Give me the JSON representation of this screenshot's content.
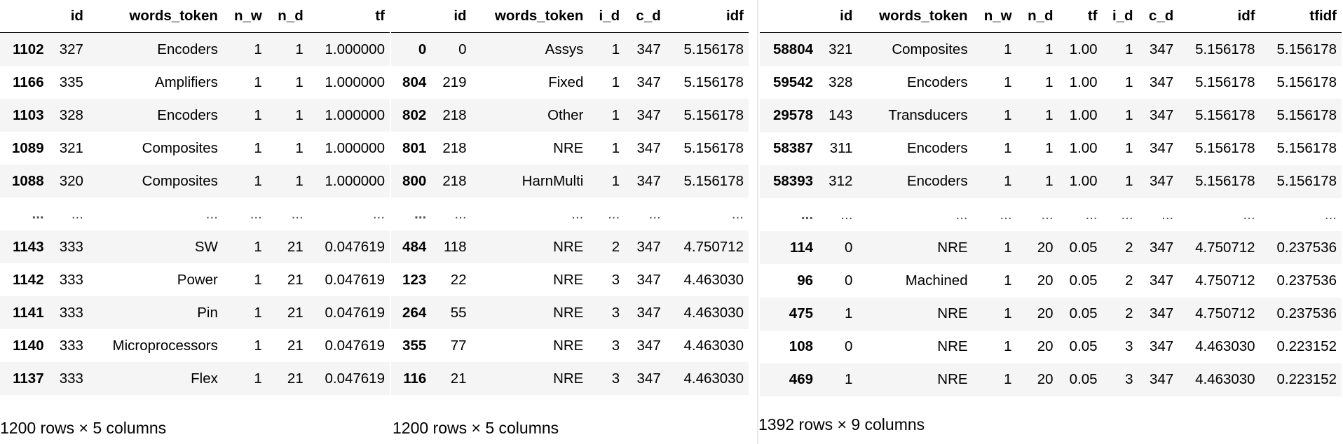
{
  "tables": [
    {
      "columns": [
        "",
        "id",
        "words_token",
        "n_w",
        "n_d",
        "tf"
      ],
      "rows": [
        [
          "1102",
          "327",
          "Encoders",
          "1",
          "1",
          "1.000000"
        ],
        [
          "1166",
          "335",
          "Amplifiers",
          "1",
          "1",
          "1.000000"
        ],
        [
          "1103",
          "328",
          "Encoders",
          "1",
          "1",
          "1.000000"
        ],
        [
          "1089",
          "321",
          "Composites",
          "1",
          "1",
          "1.000000"
        ],
        [
          "1088",
          "320",
          "Composites",
          "1",
          "1",
          "1.000000"
        ],
        [
          "...",
          "...",
          "...",
          "...",
          "...",
          "..."
        ],
        [
          "1143",
          "333",
          "SW",
          "1",
          "21",
          "0.047619"
        ],
        [
          "1142",
          "333",
          "Power",
          "1",
          "21",
          "0.047619"
        ],
        [
          "1141",
          "333",
          "Pin",
          "1",
          "21",
          "0.047619"
        ],
        [
          "1140",
          "333",
          "Microprocessors",
          "1",
          "21",
          "0.047619"
        ],
        [
          "1137",
          "333",
          "Flex",
          "1",
          "21",
          "0.047619"
        ]
      ],
      "footer": "1200 rows × 5 columns"
    },
    {
      "columns": [
        "",
        "id",
        "words_token",
        "i_d",
        "c_d",
        "idf"
      ],
      "rows": [
        [
          "0",
          "0",
          "Assys",
          "1",
          "347",
          "5.156178"
        ],
        [
          "804",
          "219",
          "Fixed",
          "1",
          "347",
          "5.156178"
        ],
        [
          "802",
          "218",
          "Other",
          "1",
          "347",
          "5.156178"
        ],
        [
          "801",
          "218",
          "NRE",
          "1",
          "347",
          "5.156178"
        ],
        [
          "800",
          "218",
          "HarnMulti",
          "1",
          "347",
          "5.156178"
        ],
        [
          "...",
          "...",
          "...",
          "...",
          "...",
          "..."
        ],
        [
          "484",
          "118",
          "NRE",
          "2",
          "347",
          "4.750712"
        ],
        [
          "123",
          "22",
          "NRE",
          "3",
          "347",
          "4.463030"
        ],
        [
          "264",
          "55",
          "NRE",
          "3",
          "347",
          "4.463030"
        ],
        [
          "355",
          "77",
          "NRE",
          "3",
          "347",
          "4.463030"
        ],
        [
          "116",
          "21",
          "NRE",
          "3",
          "347",
          "4.463030"
        ]
      ],
      "footer": "1200 rows × 5 columns"
    },
    {
      "columns": [
        "",
        "id",
        "words_token",
        "n_w",
        "n_d",
        "tf",
        "i_d",
        "c_d",
        "idf",
        "tfidf"
      ],
      "rows": [
        [
          "58804",
          "321",
          "Composites",
          "1",
          "1",
          "1.00",
          "1",
          "347",
          "5.156178",
          "5.156178"
        ],
        [
          "59542",
          "328",
          "Encoders",
          "1",
          "1",
          "1.00",
          "1",
          "347",
          "5.156178",
          "5.156178"
        ],
        [
          "29578",
          "143",
          "Transducers",
          "1",
          "1",
          "1.00",
          "1",
          "347",
          "5.156178",
          "5.156178"
        ],
        [
          "58387",
          "311",
          "Encoders",
          "1",
          "1",
          "1.00",
          "1",
          "347",
          "5.156178",
          "5.156178"
        ],
        [
          "58393",
          "312",
          "Encoders",
          "1",
          "1",
          "1.00",
          "1",
          "347",
          "5.156178",
          "5.156178"
        ],
        [
          "...",
          "...",
          "...",
          "...",
          "...",
          "...",
          "...",
          "...",
          "...",
          "..."
        ],
        [
          "114",
          "0",
          "NRE",
          "1",
          "20",
          "0.05",
          "2",
          "347",
          "4.750712",
          "0.237536"
        ],
        [
          "96",
          "0",
          "Machined",
          "1",
          "20",
          "0.05",
          "2",
          "347",
          "4.750712",
          "0.237536"
        ],
        [
          "475",
          "1",
          "NRE",
          "1",
          "20",
          "0.05",
          "2",
          "347",
          "4.750712",
          "0.237536"
        ],
        [
          "108",
          "0",
          "NRE",
          "1",
          "20",
          "0.05",
          "3",
          "347",
          "4.463030",
          "0.223152"
        ],
        [
          "469",
          "1",
          "NRE",
          "1",
          "20",
          "0.05",
          "3",
          "347",
          "4.463030",
          "0.223152"
        ]
      ],
      "footer": "1392 rows × 9 columns"
    }
  ]
}
